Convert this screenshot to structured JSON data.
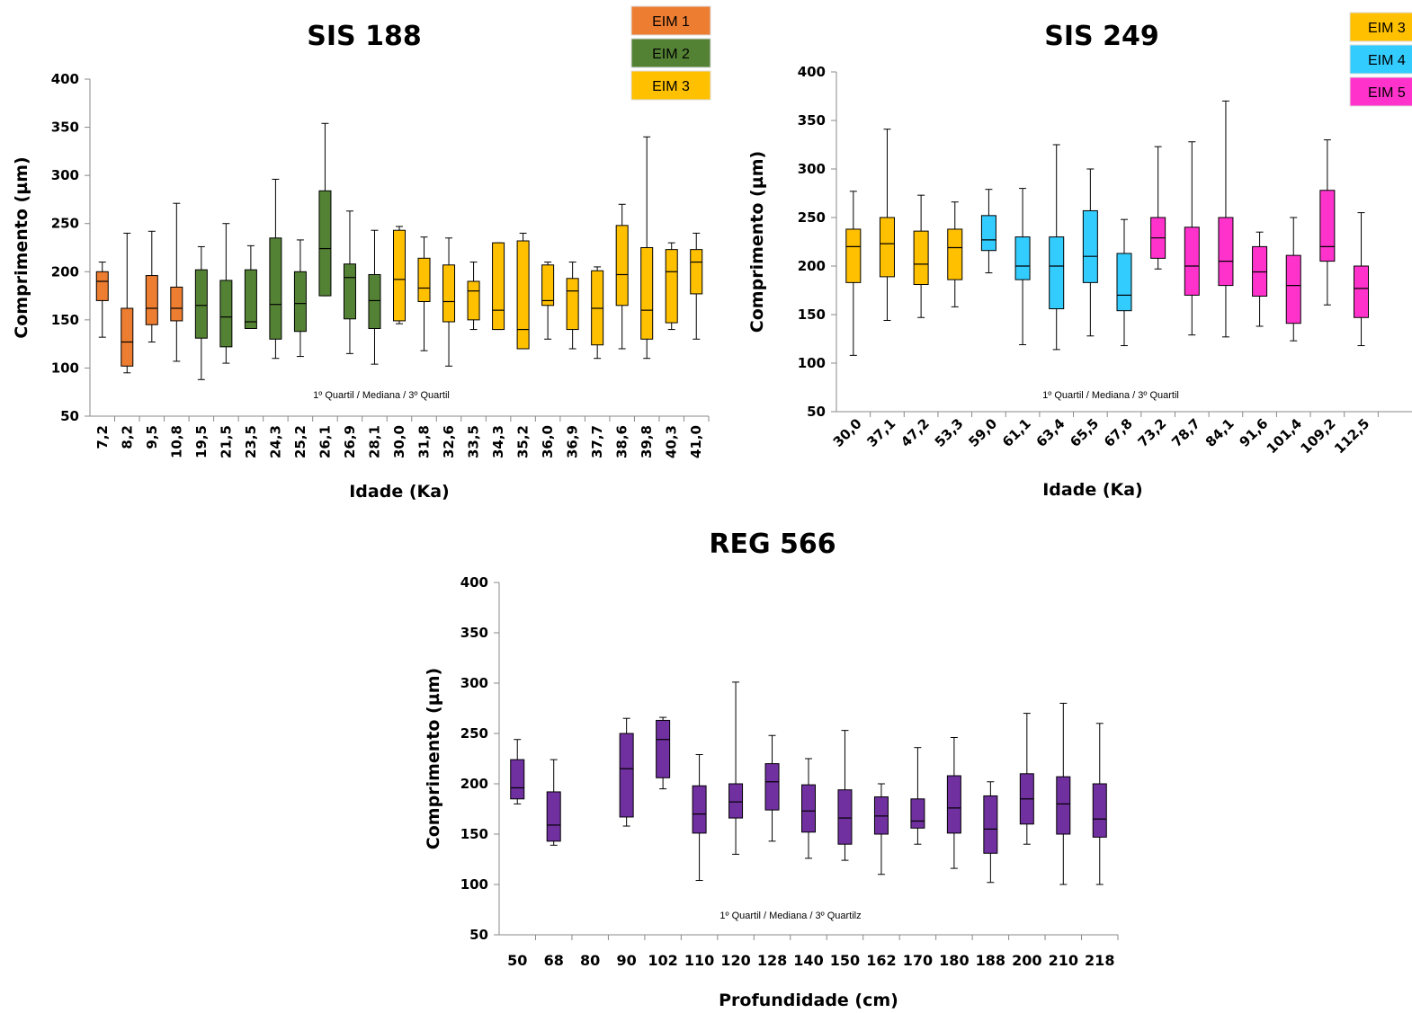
{
  "charts": [
    {
      "id": "sis188",
      "type": "box",
      "title": "SIS 188",
      "xlabel": "Idade (Ka)",
      "ylabel": "Comprimento (µm)",
      "ylim": [
        50,
        400
      ],
      "yticks": [
        50,
        100,
        150,
        200,
        250,
        300,
        350,
        400
      ],
      "note": "1º Quartil / Mediana / 3º Quartil",
      "tick_rotation": "vertical",
      "legend": [
        {
          "label": "EIM 1",
          "color": "#ED7D31"
        },
        {
          "label": "EIM 2",
          "color": "#548235"
        },
        {
          "label": "EIM 3",
          "color": "#FFC000"
        }
      ],
      "boxes": [
        {
          "x": "7,2",
          "min": 132,
          "q1": 170,
          "median": 190,
          "q3": 200,
          "max": 210,
          "group": 0
        },
        {
          "x": "8,2",
          "min": 95,
          "q1": 102,
          "median": 127,
          "q3": 162,
          "max": 240,
          "group": 0
        },
        {
          "x": "9,5",
          "min": 127,
          "q1": 145,
          "median": 162,
          "q3": 196,
          "max": 242,
          "group": 0
        },
        {
          "x": "10,8",
          "min": 107,
          "q1": 149,
          "median": 162,
          "q3": 184,
          "max": 271,
          "group": 0
        },
        {
          "x": "19,5",
          "min": 88,
          "q1": 131,
          "median": 165,
          "q3": 202,
          "max": 226,
          "group": 1
        },
        {
          "x": "21,5",
          "min": 105,
          "q1": 122,
          "median": 153,
          "q3": 191,
          "max": 250,
          "group": 1
        },
        {
          "x": "23,5",
          "min": 141,
          "q1": 141,
          "median": 148,
          "q3": 202,
          "max": 227,
          "group": 1
        },
        {
          "x": "24,3",
          "min": 110,
          "q1": 130,
          "median": 166,
          "q3": 235,
          "max": 296,
          "group": 1
        },
        {
          "x": "25,2",
          "min": 112,
          "q1": 138,
          "median": 167,
          "q3": 200,
          "max": 233,
          "group": 1
        },
        {
          "x": "26,1",
          "min": 175,
          "q1": 175,
          "median": 224,
          "q3": 284,
          "max": 354,
          "group": 1
        },
        {
          "x": "26,9",
          "min": 115,
          "q1": 151,
          "median": 194,
          "q3": 208,
          "max": 263,
          "group": 1
        },
        {
          "x": "28,1",
          "min": 104,
          "q1": 141,
          "median": 170,
          "q3": 197,
          "max": 243,
          "group": 1
        },
        {
          "x": "30,0",
          "min": 146,
          "q1": 149,
          "median": 192,
          "q3": 243,
          "max": 247,
          "group": 2
        },
        {
          "x": "31,8",
          "min": 118,
          "q1": 169,
          "median": 183,
          "q3": 214,
          "max": 236,
          "group": 2
        },
        {
          "x": "32,6",
          "min": 102,
          "q1": 148,
          "median": 169,
          "q3": 207,
          "max": 235,
          "group": 2
        },
        {
          "x": "33,5",
          "min": 140,
          "q1": 150,
          "median": 180,
          "q3": 190,
          "max": 210,
          "group": 2
        },
        {
          "x": "34,3",
          "min": 140,
          "q1": 140,
          "median": 160,
          "q3": 230,
          "max": 230,
          "group": 2
        },
        {
          "x": "35,2",
          "min": 120,
          "q1": 120,
          "median": 140,
          "q3": 232,
          "max": 240,
          "group": 2
        },
        {
          "x": "36,0",
          "min": 130,
          "q1": 165,
          "median": 170,
          "q3": 207,
          "max": 210,
          "group": 2
        },
        {
          "x": "36,9",
          "min": 120,
          "q1": 140,
          "median": 180,
          "q3": 193,
          "max": 210,
          "group": 2
        },
        {
          "x": "37,7",
          "min": 110,
          "q1": 124,
          "median": 162,
          "q3": 201,
          "max": 205,
          "group": 2
        },
        {
          "x": "38,6",
          "min": 120,
          "q1": 165,
          "median": 197,
          "q3": 248,
          "max": 270,
          "group": 2
        },
        {
          "x": "39,8",
          "min": 110,
          "q1": 130,
          "median": 160,
          "q3": 225,
          "max": 340,
          "group": 2
        },
        {
          "x": "40,3",
          "min": 140,
          "q1": 147,
          "median": 200,
          "q3": 223,
          "max": 230,
          "group": 2
        },
        {
          "x": "41,0",
          "min": 130,
          "q1": 177,
          "median": 210,
          "q3": 223,
          "max": 240,
          "group": 2
        }
      ]
    },
    {
      "id": "sis249",
      "type": "box",
      "title": "SIS 249",
      "xlabel": "Idade (Ka)",
      "ylabel": "Comprimento (µm)",
      "ylim": [
        50,
        400
      ],
      "yticks": [
        50,
        100,
        150,
        200,
        250,
        300,
        350,
        400
      ],
      "note": "1º Quartil / Mediana / 3º Quartil",
      "tick_rotation": "diagonal",
      "legend": [
        {
          "label": "EIM 3",
          "color": "#FFC000"
        },
        {
          "label": "EIM 4",
          "color": "#33CCFF"
        },
        {
          "label": "EIM 5",
          "color": "#FF33CC"
        }
      ],
      "boxes": [
        {
          "x": "30,0",
          "min": 108,
          "q1": 183,
          "median": 220,
          "q3": 238,
          "max": 277,
          "group": 0
        },
        {
          "x": "37,1",
          "min": 144,
          "q1": 189,
          "median": 223,
          "q3": 250,
          "max": 341,
          "group": 0
        },
        {
          "x": "47,2",
          "min": 147,
          "q1": 181,
          "median": 202,
          "q3": 236,
          "max": 273,
          "group": 0
        },
        {
          "x": "53,3",
          "min": 158,
          "q1": 186,
          "median": 219,
          "q3": 238,
          "max": 266,
          "group": 0
        },
        {
          "x": "59,0",
          "min": 193,
          "q1": 216,
          "median": 227,
          "q3": 252,
          "max": 279,
          "group": 1
        },
        {
          "x": "61,1",
          "min": 119,
          "q1": 186,
          "median": 200,
          "q3": 230,
          "max": 280,
          "group": 1
        },
        {
          "x": "63,4",
          "min": 114,
          "q1": 156,
          "median": 200,
          "q3": 230,
          "max": 325,
          "group": 1
        },
        {
          "x": "65,5",
          "min": 128,
          "q1": 183,
          "median": 210,
          "q3": 257,
          "max": 300,
          "group": 1
        },
        {
          "x": "67,8",
          "min": 118,
          "q1": 154,
          "median": 170,
          "q3": 213,
          "max": 248,
          "group": 1
        },
        {
          "x": "73,2",
          "min": 197,
          "q1": 208,
          "median": 229,
          "q3": 250,
          "max": 323,
          "group": 2
        },
        {
          "x": "78,7",
          "min": 129,
          "q1": 170,
          "median": 200,
          "q3": 240,
          "max": 328,
          "group": 2
        },
        {
          "x": "84,1",
          "min": 127,
          "q1": 180,
          "median": 205,
          "q3": 250,
          "max": 370,
          "group": 2
        },
        {
          "x": "91,6",
          "min": 138,
          "q1": 169,
          "median": 194,
          "q3": 220,
          "max": 235,
          "group": 2
        },
        {
          "x": "101,4",
          "min": 123,
          "q1": 141,
          "median": 180,
          "q3": 211,
          "max": 250,
          "group": 2
        },
        {
          "x": "109,2",
          "min": 160,
          "q1": 205,
          "median": 220,
          "q3": 278,
          "max": 330,
          "group": 2
        },
        {
          "x": "112,5",
          "min": 118,
          "q1": 147,
          "median": 177,
          "q3": 200,
          "max": 255,
          "group": 2
        }
      ]
    },
    {
      "id": "reg566",
      "type": "box",
      "title": "REG 566",
      "xlabel": "Profundidade (cm)",
      "ylabel": "Comprimento (µm)",
      "ylim": [
        50,
        400
      ],
      "yticks": [
        50,
        100,
        150,
        200,
        250,
        300,
        350,
        400
      ],
      "note": "1º Quartil / Mediana / 3º Quartilz",
      "tick_rotation": "horizontal",
      "legend": [],
      "color": "#7030A0",
      "boxes": [
        {
          "x": "50",
          "min": 180,
          "q1": 185,
          "median": 196,
          "q3": 224,
          "max": 244
        },
        {
          "x": "68",
          "min": 139,
          "q1": 143,
          "median": 159,
          "q3": 192,
          "max": 224
        },
        {
          "x": "80"
        },
        {
          "x": "90",
          "min": 158,
          "q1": 167,
          "median": 215,
          "q3": 250,
          "max": 265
        },
        {
          "x": "102",
          "min": 195,
          "q1": 206,
          "median": 244,
          "q3": 263,
          "max": 266
        },
        {
          "x": "110",
          "min": 104,
          "q1": 151,
          "median": 170,
          "q3": 198,
          "max": 229
        },
        {
          "x": "120",
          "min": 130,
          "q1": 166,
          "median": 182,
          "q3": 200,
          "max": 301
        },
        {
          "x": "128",
          "min": 143,
          "q1": 174,
          "median": 202,
          "q3": 220,
          "max": 248
        },
        {
          "x": "140",
          "min": 126,
          "q1": 152,
          "median": 173,
          "q3": 199,
          "max": 225
        },
        {
          "x": "150",
          "min": 124,
          "q1": 140,
          "median": 166,
          "q3": 194,
          "max": 253
        },
        {
          "x": "162",
          "min": 110,
          "q1": 150,
          "median": 168,
          "q3": 187,
          "max": 200
        },
        {
          "x": "170",
          "min": 140,
          "q1": 156,
          "median": 163,
          "q3": 185,
          "max": 236
        },
        {
          "x": "180",
          "min": 116,
          "q1": 151,
          "median": 176,
          "q3": 208,
          "max": 246
        },
        {
          "x": "188",
          "min": 102,
          "q1": 131,
          "median": 155,
          "q3": 188,
          "max": 202
        },
        {
          "x": "200",
          "min": 140,
          "q1": 160,
          "median": 185,
          "q3": 210,
          "max": 270
        },
        {
          "x": "210",
          "min": 100,
          "q1": 150,
          "median": 180,
          "q3": 207,
          "max": 280
        },
        {
          "x": "218",
          "min": 100,
          "q1": 147,
          "median": 165,
          "q3": 200,
          "max": 260
        }
      ]
    }
  ]
}
